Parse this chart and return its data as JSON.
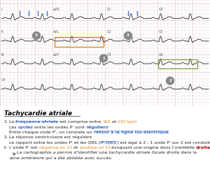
{
  "title": "Tachycardie atriale",
  "ecg_bg": "#f5f0e8",
  "ecg_grid": "#e0c8c8",
  "text_color": "#222222",
  "bold_color": "#000000",
  "orange_color": "#e08010",
  "blue_color": "#4472c4",
  "green_color": "#70a040",
  "red_color": "#c00000",
  "bullet_color": "#808080",
  "items": [
    {
      "number": "1.",
      "parts": [
        {
          "text": "La ",
          "bold": false,
          "color": "#222222"
        },
        {
          "text": "fréquence atriale",
          "bold": true,
          "color": "#4472c4",
          "underline": true
        },
        {
          "text": " est comprise entre ",
          "bold": false,
          "color": "#222222"
        },
        {
          "text": "100",
          "bold": false,
          "color": "#e08010"
        },
        {
          "text": " et ",
          "bold": false,
          "color": "#222222"
        },
        {
          "text": "250 bpm",
          "bold": false,
          "color": "#e08010"
        }
      ]
    },
    {
      "number": "",
      "parts": [
        {
          "text": "Les ",
          "bold": false,
          "color": "#222222"
        },
        {
          "text": "cycles",
          "bold": true,
          "color": "#4472c4",
          "underline": true
        },
        {
          "text": " entre les ondes P’ sont ",
          "bold": false,
          "color": "#222222"
        },
        {
          "text": "réguliers",
          "bold": true,
          "color": "#4472c4",
          "underline": true
        }
      ]
    },
    {
      "number": "",
      "parts": [
        {
          "text": "Entre chaque onde P’, on constate un ",
          "bold": false,
          "color": "#222222"
        },
        {
          "text": "retour à la ligne iso-électrique",
          "bold": true,
          "color": "#4472c4",
          "underline": true
        }
      ]
    },
    {
      "number": "2.",
      "parts": [
        {
          "text": "La réponse ventriculaire est régulière",
          "bold": false,
          "color": "#222222"
        }
      ]
    },
    {
      "number": "",
      "parts": [
        {
          "text": "Le rapport entre les ondes P’ et les QRS (",
          "bold": false,
          "color": "#222222"
        },
        {
          "text": "P’/QRS",
          "bold": true,
          "color": "#4472c4",
          "underline": true
        },
        {
          "text": ") est égal à 2 : 1 onde P’ sur 2 est conduite",
          "bold": false,
          "color": "#222222"
        }
      ]
    },
    {
      "number": "3.",
      "parts": [
        {
          "text": "L’onde P’ est ",
          "bold": false,
          "color": "#222222"
        },
        {
          "text": "négative en V1",
          "bold": false,
          "color": "#e08010"
        },
        {
          "text": " et ",
          "bold": false,
          "color": "#222222"
        },
        {
          "text": "positive en DI",
          "bold": false,
          "color": "#e08010"
        },
        {
          "text": " évoquant une origine dans l’oreillette ",
          "bold": false,
          "color": "#222222"
        },
        {
          "text": "droite",
          "bold": true,
          "color": "#c00000"
        }
      ]
    },
    {
      "number": "➤",
      "parts": [
        {
          "text": "La cartographie a permis d’identifier une tachycardie atriale focale droite dans la",
          "bold": false,
          "italic": true,
          "color": "#222222"
        }
      ]
    },
    {
      "number": "",
      "parts": [
        {
          "text": "zone antérieure qui a été ablatée avec succès.",
          "bold": false,
          "italic": true,
          "color": "#222222"
        }
      ]
    }
  ]
}
